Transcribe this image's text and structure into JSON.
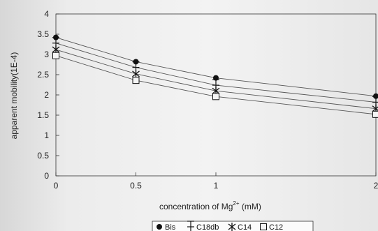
{
  "chart_data": {
    "type": "line",
    "ylabel": "apparent mobility(1E-4)",
    "xlabel": "concentration of Mg",
    "xlabel_sup": "2+",
    "xlabel_unit": " (mM)",
    "x": [
      0,
      0.5,
      1,
      2
    ],
    "xticks": [
      "0",
      "0.5",
      "1",
      "2"
    ],
    "yticks": [
      "0",
      "0.5",
      "1",
      "1.5",
      "2",
      "2.5",
      "3",
      "3.5",
      "4"
    ],
    "ylim": [
      0,
      4
    ],
    "grid": false,
    "legend_position": "bottom",
    "series": [
      {
        "name": "Bis",
        "marker": "dot",
        "values": [
          3.42,
          2.82,
          2.42,
          1.97
        ]
      },
      {
        "name": "C18db",
        "marker": "errorbar",
        "values": [
          3.28,
          2.68,
          2.24,
          1.82
        ]
      },
      {
        "name": "C14",
        "marker": "asterisk",
        "values": [
          3.12,
          2.52,
          2.1,
          1.66
        ]
      },
      {
        "name": "C12",
        "marker": "square",
        "values": [
          2.97,
          2.36,
          1.96,
          1.52
        ]
      }
    ],
    "colors": {
      "line": "#555555",
      "marker": "#111111",
      "frame": "#333333"
    }
  }
}
